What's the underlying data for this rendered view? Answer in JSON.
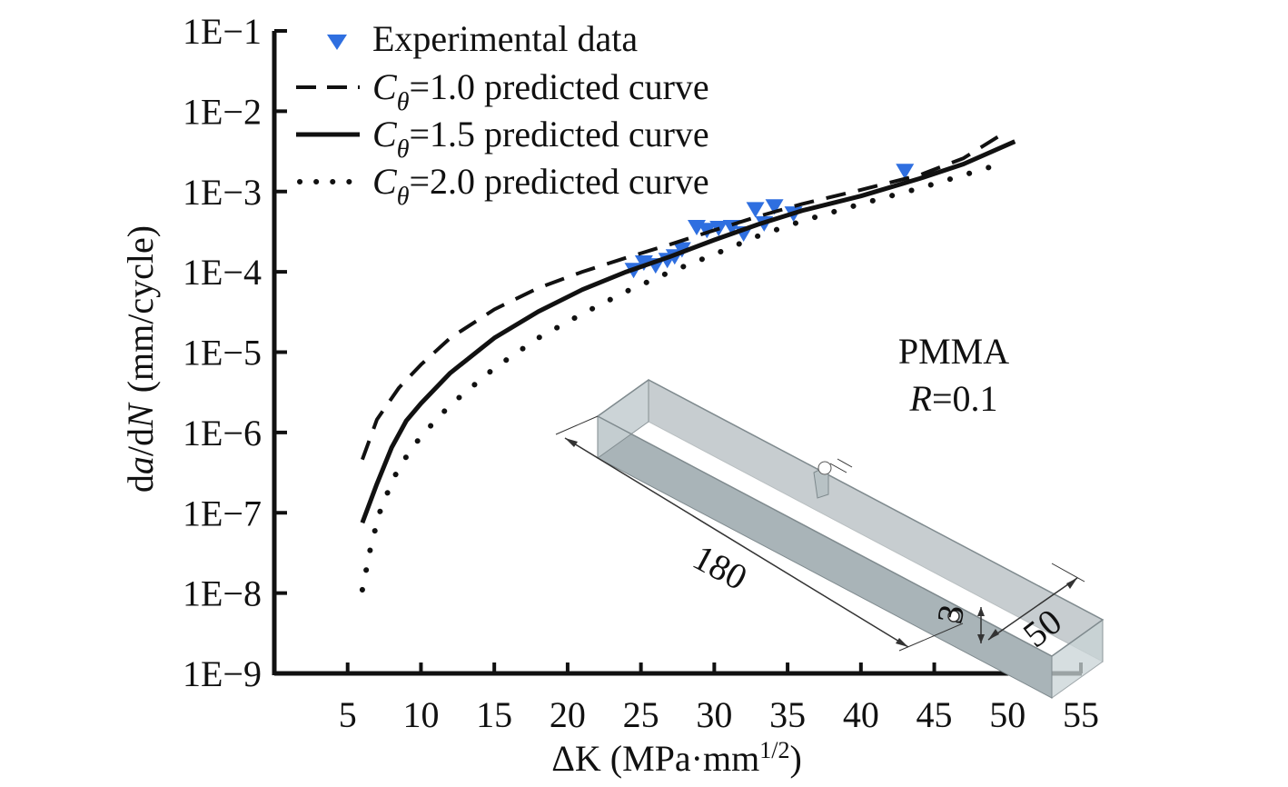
{
  "chart_data": {
    "type": "scatter",
    "xlabel": {
      "prefix": "ΔK (MPa·mm",
      "sup": "1/2",
      "suffix": ")"
    },
    "ylabel": {
      "pre": "d",
      "a": "a",
      "mid": "/d",
      "N": "N",
      "post": "(mm/cycle)"
    },
    "xlim": [
      0,
      55
    ],
    "ylim_log10": [
      -9,
      -1
    ],
    "y_scale": "log",
    "x_ticks": [
      5,
      10,
      15,
      20,
      25,
      30,
      35,
      40,
      45,
      50,
      55
    ],
    "x_tick_labels": [
      "5",
      "10",
      "15",
      "20",
      "25",
      "30",
      "35",
      "40",
      "45",
      "50",
      "55"
    ],
    "y_ticks_log10": [
      -9,
      -8,
      -7,
      -6,
      -5,
      -4,
      -3,
      -2,
      -1
    ],
    "y_tick_labels": [
      "1E−9",
      "1E−8",
      "1E−7",
      "1E−6",
      "1E−5",
      "1E−4",
      "1E−3",
      "1E−2",
      "1E−1"
    ],
    "legend_position": "top-left",
    "legend": [
      {
        "symbol": "triangle",
        "text": "Experimental data"
      },
      {
        "symbol": "dashed",
        "c": "C",
        "sub": "θ",
        "rest": "=1.0 predicted curve"
      },
      {
        "symbol": "solid",
        "c": "C",
        "sub": "θ",
        "rest": "=1.5 predicted curve"
      },
      {
        "symbol": "dotted",
        "c": "C",
        "sub": "θ",
        "rest": "=2.0 predicted curve"
      }
    ],
    "series": [
      {
        "name": "Experimental data",
        "type": "scatter",
        "color": "#2f6fe0",
        "points": [
          [
            24.5,
            0.000105
          ],
          [
            25.2,
            0.00013
          ],
          [
            26.0,
            0.00012
          ],
          [
            26.8,
            0.00014
          ],
          [
            27.3,
            0.000155
          ],
          [
            27.8,
            0.00019
          ],
          [
            28.8,
            0.00036
          ],
          [
            29.5,
            0.00033
          ],
          [
            30.3,
            0.00035
          ],
          [
            31.2,
            0.00036
          ],
          [
            32.0,
            0.0003
          ],
          [
            32.8,
            0.0006
          ],
          [
            33.4,
            0.0004
          ],
          [
            34.1,
            0.00065
          ],
          [
            35.4,
            0.00053
          ],
          [
            43.0,
            0.0018
          ]
        ]
      },
      {
        "name": "Cθ=1.0 predicted curve",
        "type": "line",
        "style": "dashed",
        "points": [
          [
            6.0,
            4.6e-07
          ],
          [
            7.0,
            1.45e-06
          ],
          [
            8.5,
            3.6e-06
          ],
          [
            10.0,
            7e-06
          ],
          [
            12.0,
            1.5e-05
          ],
          [
            15.0,
            3.4e-05
          ],
          [
            18.0,
            6.3e-05
          ],
          [
            21.0,
            0.0001
          ],
          [
            24.0,
            0.00015
          ],
          [
            27.0,
            0.00022
          ],
          [
            30.0,
            0.00033
          ],
          [
            33.0,
            0.00049
          ],
          [
            36.0,
            0.0007
          ],
          [
            40.0,
            0.00105
          ],
          [
            44.0,
            0.0016
          ],
          [
            47.0,
            0.0026
          ],
          [
            49.5,
            0.005
          ]
        ]
      },
      {
        "name": "Cθ=1.5 predicted curve",
        "type": "line",
        "style": "solid",
        "points": [
          [
            6.0,
            7.5e-08
          ],
          [
            7.0,
            2.3e-07
          ],
          [
            8.0,
            6.5e-07
          ],
          [
            9.0,
            1.4e-06
          ],
          [
            10.0,
            2.3e-06
          ],
          [
            12.0,
            5.5e-06
          ],
          [
            15.0,
            1.5e-05
          ],
          [
            18.0,
            3.2e-05
          ],
          [
            21.0,
            6e-05
          ],
          [
            24.0,
            0.0001
          ],
          [
            27.0,
            0.000155
          ],
          [
            30.0,
            0.00025
          ],
          [
            33.0,
            0.00039
          ],
          [
            36.0,
            0.00058
          ],
          [
            40.0,
            0.00088
          ],
          [
            44.0,
            0.00145
          ],
          [
            47.0,
            0.0022
          ],
          [
            50.5,
            0.0042
          ]
        ]
      },
      {
        "name": "Cθ=2.0 predicted curve",
        "type": "line",
        "style": "dotted",
        "points": [
          [
            6.0,
            1.1e-08
          ],
          [
            6.6,
            4e-08
          ],
          [
            7.3,
            1.2e-07
          ],
          [
            8.5,
            3.7e-07
          ],
          [
            10.0,
            9e-07
          ],
          [
            12.0,
            2.2e-06
          ],
          [
            15.0,
            6.3e-06
          ],
          [
            18.0,
            1.5e-05
          ],
          [
            21.0,
            3e-05
          ],
          [
            24.0,
            5.7e-05
          ],
          [
            27.0,
            0.0001
          ],
          [
            30.0,
            0.000165
          ],
          [
            33.0,
            0.00028
          ],
          [
            36.0,
            0.00043
          ],
          [
            40.0,
            0.0007
          ],
          [
            44.0,
            0.0011
          ],
          [
            47.0,
            0.0016
          ],
          [
            49.5,
            0.0022
          ]
        ]
      }
    ],
    "annotation": {
      "material": "PMMA",
      "r_italic": "R",
      "r_rest": "=0.1"
    },
    "specimen_dimensions": {
      "length": "180",
      "width": "50",
      "thickness": "3"
    }
  }
}
